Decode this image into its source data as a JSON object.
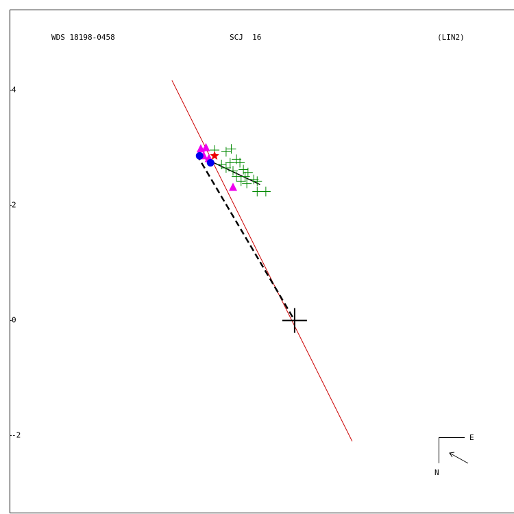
{
  "chart_data": {
    "type": "scatter",
    "titles": [
      "WDS 18198-0458",
      "SCJ  16",
      "(LIN2)"
    ],
    "compass": {
      "east": "E",
      "north": "N"
    },
    "xlim": [
      -4.95,
      3.81
    ],
    "ylim": [
      -3.35,
      5.4
    ],
    "yticks": [
      -2,
      0,
      2,
      4
    ],
    "lines": [
      {
        "style": "solid",
        "color": "#cc0000",
        "x": [
          -2.13,
          1.0
        ],
        "y": [
          4.17,
          -2.1
        ]
      },
      {
        "style": "dashed",
        "color": "#000000",
        "x": [
          -1.7,
          0
        ],
        "y": [
          2.88,
          0
        ]
      },
      {
        "style": "solid",
        "color": "#000000",
        "x": [
          -1.7,
          -0.6
        ],
        "y": [
          2.88,
          2.36
        ]
      }
    ],
    "series": [
      {
        "marker": "plus",
        "color": "#008800",
        "x": [
          -1.39,
          -1.19,
          -1.1,
          -1.01,
          -0.95,
          -1.19,
          -1.07,
          -0.89,
          -0.81,
          -1.01,
          -0.86,
          -0.71,
          -0.65,
          -0.83,
          -0.65,
          -0.5,
          -0.93,
          -1.12,
          -1.27
        ],
        "y": [
          2.96,
          2.93,
          2.98,
          2.8,
          2.74,
          2.65,
          2.6,
          2.62,
          2.57,
          2.5,
          2.5,
          2.45,
          2.42,
          2.38,
          2.24,
          2.24,
          2.42,
          2.74,
          2.71
        ]
      },
      {
        "marker": "triangle",
        "color": "#ee00ee",
        "x": [
          -1.63,
          -1.54,
          -1.07,
          -1.49,
          -1.58
        ],
        "y": [
          2.98,
          3.0,
          2.31,
          2.81,
          2.86
        ]
      },
      {
        "marker": "circle",
        "color": "#0000ee",
        "x": [
          -1.65,
          -1.46
        ],
        "y": [
          2.86,
          2.74
        ]
      },
      {
        "marker": "star",
        "color": "#ee0000",
        "x": [
          -1.39
        ],
        "y": [
          2.86
        ]
      },
      {
        "marker": "bigplus",
        "color": "#000000",
        "x": [
          0
        ],
        "y": [
          0
        ]
      }
    ]
  }
}
